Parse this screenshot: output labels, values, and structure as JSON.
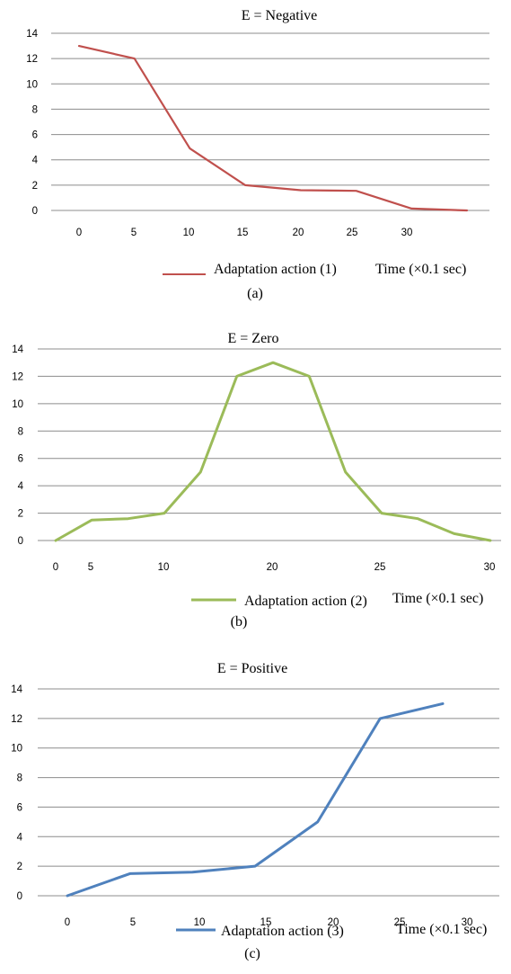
{
  "chart_data": [
    {
      "type": "line",
      "title": "E = Negative",
      "xlabel": "Time (×0.1 sec)",
      "ylabel": "",
      "ylim": [
        0,
        14
      ],
      "yticks": [
        0,
        2,
        4,
        6,
        8,
        10,
        12,
        14
      ],
      "x_tick_labels": [
        "0",
        "5",
        "10",
        "15",
        "20",
        "25",
        "30"
      ],
      "grid": "horizontal",
      "legend": "bottom",
      "series": [
        {
          "name": "Adaptation action (1)",
          "color": "#c0504d",
          "x": [
            0,
            5,
            10,
            15,
            20,
            25,
            30,
            35
          ],
          "y": [
            13,
            12,
            4.9,
            2,
            1.6,
            1.55,
            0.15,
            0
          ]
        }
      ],
      "panel_label": "(a)"
    },
    {
      "type": "line",
      "title": "E = Zero",
      "xlabel": "Time (×0.1 sec)",
      "ylabel": "",
      "ylim": [
        0,
        14
      ],
      "yticks": [
        0,
        2,
        4,
        6,
        8,
        10,
        12,
        14
      ],
      "x_tick_labels": [
        "0",
        "5",
        "10",
        "20",
        "25",
        "30"
      ],
      "grid": "horizontal",
      "legend": "bottom",
      "series": [
        {
          "name": "Adaptation action (2)",
          "color": "#9bbb59",
          "x": [
            0,
            2.5,
            5,
            7.5,
            10,
            12.5,
            15,
            17.5,
            20,
            22.5,
            25,
            27.5,
            30
          ],
          "y": [
            0,
            1.5,
            1.6,
            2,
            5,
            12,
            13,
            12,
            5,
            2,
            1.6,
            0.5,
            0
          ]
        }
      ],
      "panel_label": "(b)"
    },
    {
      "type": "line",
      "title": "E = Positive",
      "xlabel": "Time (×0.1 sec)",
      "ylabel": "",
      "ylim": [
        0,
        14
      ],
      "yticks": [
        0,
        2,
        4,
        6,
        8,
        10,
        12,
        14
      ],
      "x_tick_labels": [
        "0",
        "5",
        "10",
        "15",
        "20",
        "25",
        "30"
      ],
      "grid": "horizontal",
      "legend": "bottom",
      "series": [
        {
          "name": "Adaptation action (3)",
          "color": "#4f81bd",
          "x": [
            0,
            5,
            10,
            15,
            20,
            25,
            30
          ],
          "y": [
            0,
            1.5,
            1.6,
            2,
            5,
            12,
            13
          ]
        }
      ],
      "panel_label": "(c)"
    }
  ]
}
